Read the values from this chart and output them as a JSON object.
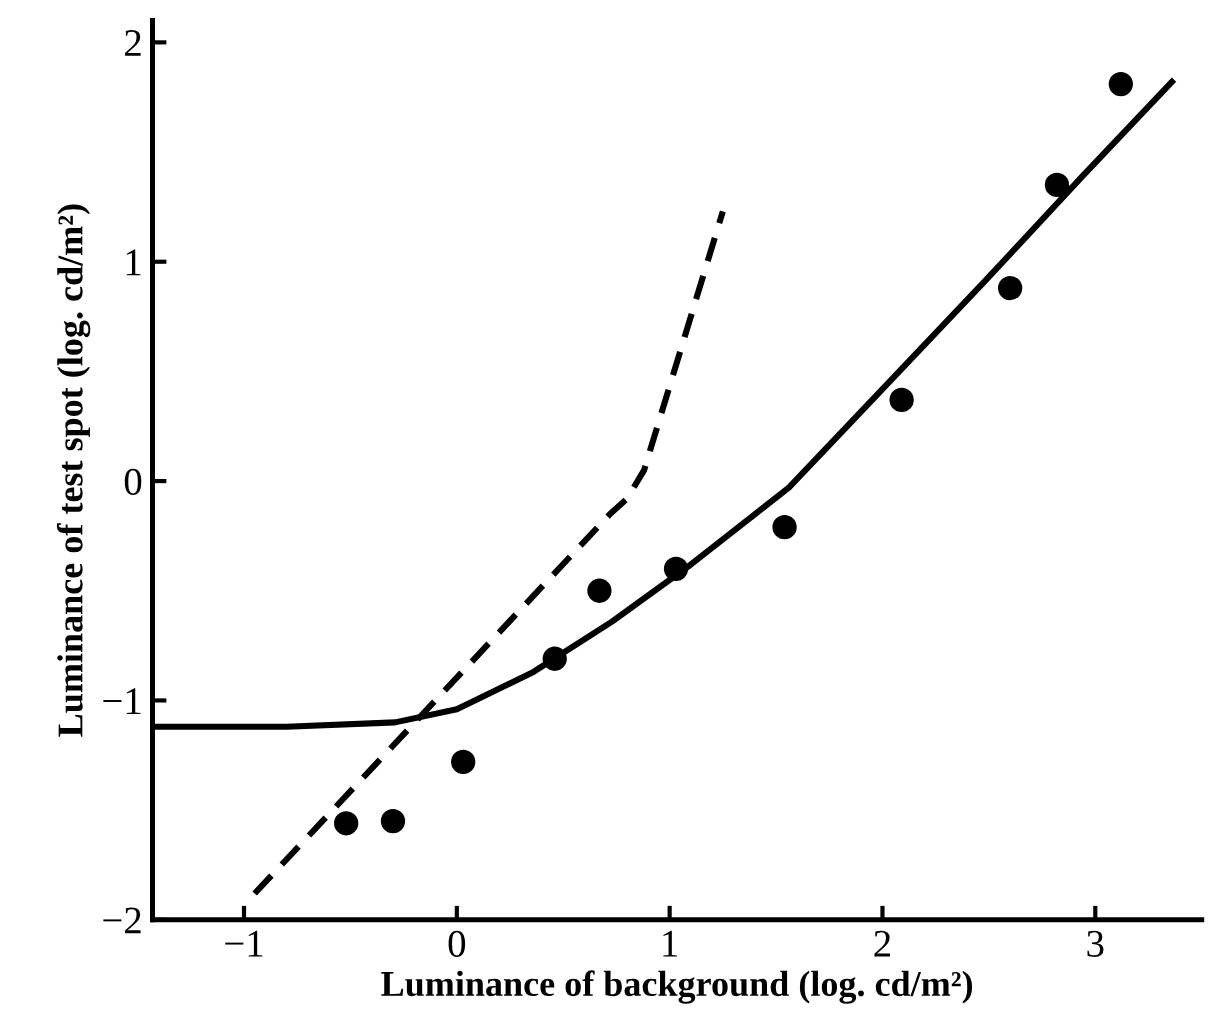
{
  "chart_data": {
    "type": "scatter",
    "xlabel": "Luminance of background (log. cd/m²)",
    "ylabel": "Luminance of test spot (log. cd/m²)",
    "xlim": [
      -1.43,
      3.5
    ],
    "ylim": [
      -2,
      2.1
    ],
    "xticks": [
      -1,
      0,
      1,
      2,
      3
    ],
    "yticks": [
      -2,
      -1,
      0,
      1,
      2
    ],
    "grid": false,
    "legend": false,
    "series": [
      {
        "color": "#000000",
        "marker": "circle",
        "x": [
          -0.52,
          -0.3,
          0.03,
          0.46,
          0.67,
          1.03,
          1.54,
          2.09,
          2.6,
          2.82,
          3.12
        ],
        "values": [
          -1.56,
          -1.55,
          -1.28,
          -0.81,
          -0.5,
          -0.4,
          -0.21,
          0.37,
          0.88,
          1.35,
          1.81
        ]
      },
      {
        "type": "line",
        "color": "#000000",
        "marker": "none",
        "line_style": "solid",
        "x": [
          -1.43,
          -0.8,
          -0.29,
          0,
          0.36,
          0.73,
          1.1,
          1.56,
          2.02,
          2.48,
          2.94,
          3.36
        ],
        "values": [
          -1.12,
          -1.12,
          -1.1,
          -1.04,
          -0.87,
          -0.64,
          -0.38,
          -0.03,
          0.44,
          0.91,
          1.39,
          1.82
        ]
      },
      {
        "type": "line",
        "color": "#000000",
        "marker": "none",
        "line_style": "dashed",
        "x": [
          -0.95,
          0.72,
          0.8,
          0.88,
          1.25
        ],
        "values": [
          -1.88,
          -0.15,
          -0.08,
          0.05,
          1.23
        ]
      }
    ]
  }
}
